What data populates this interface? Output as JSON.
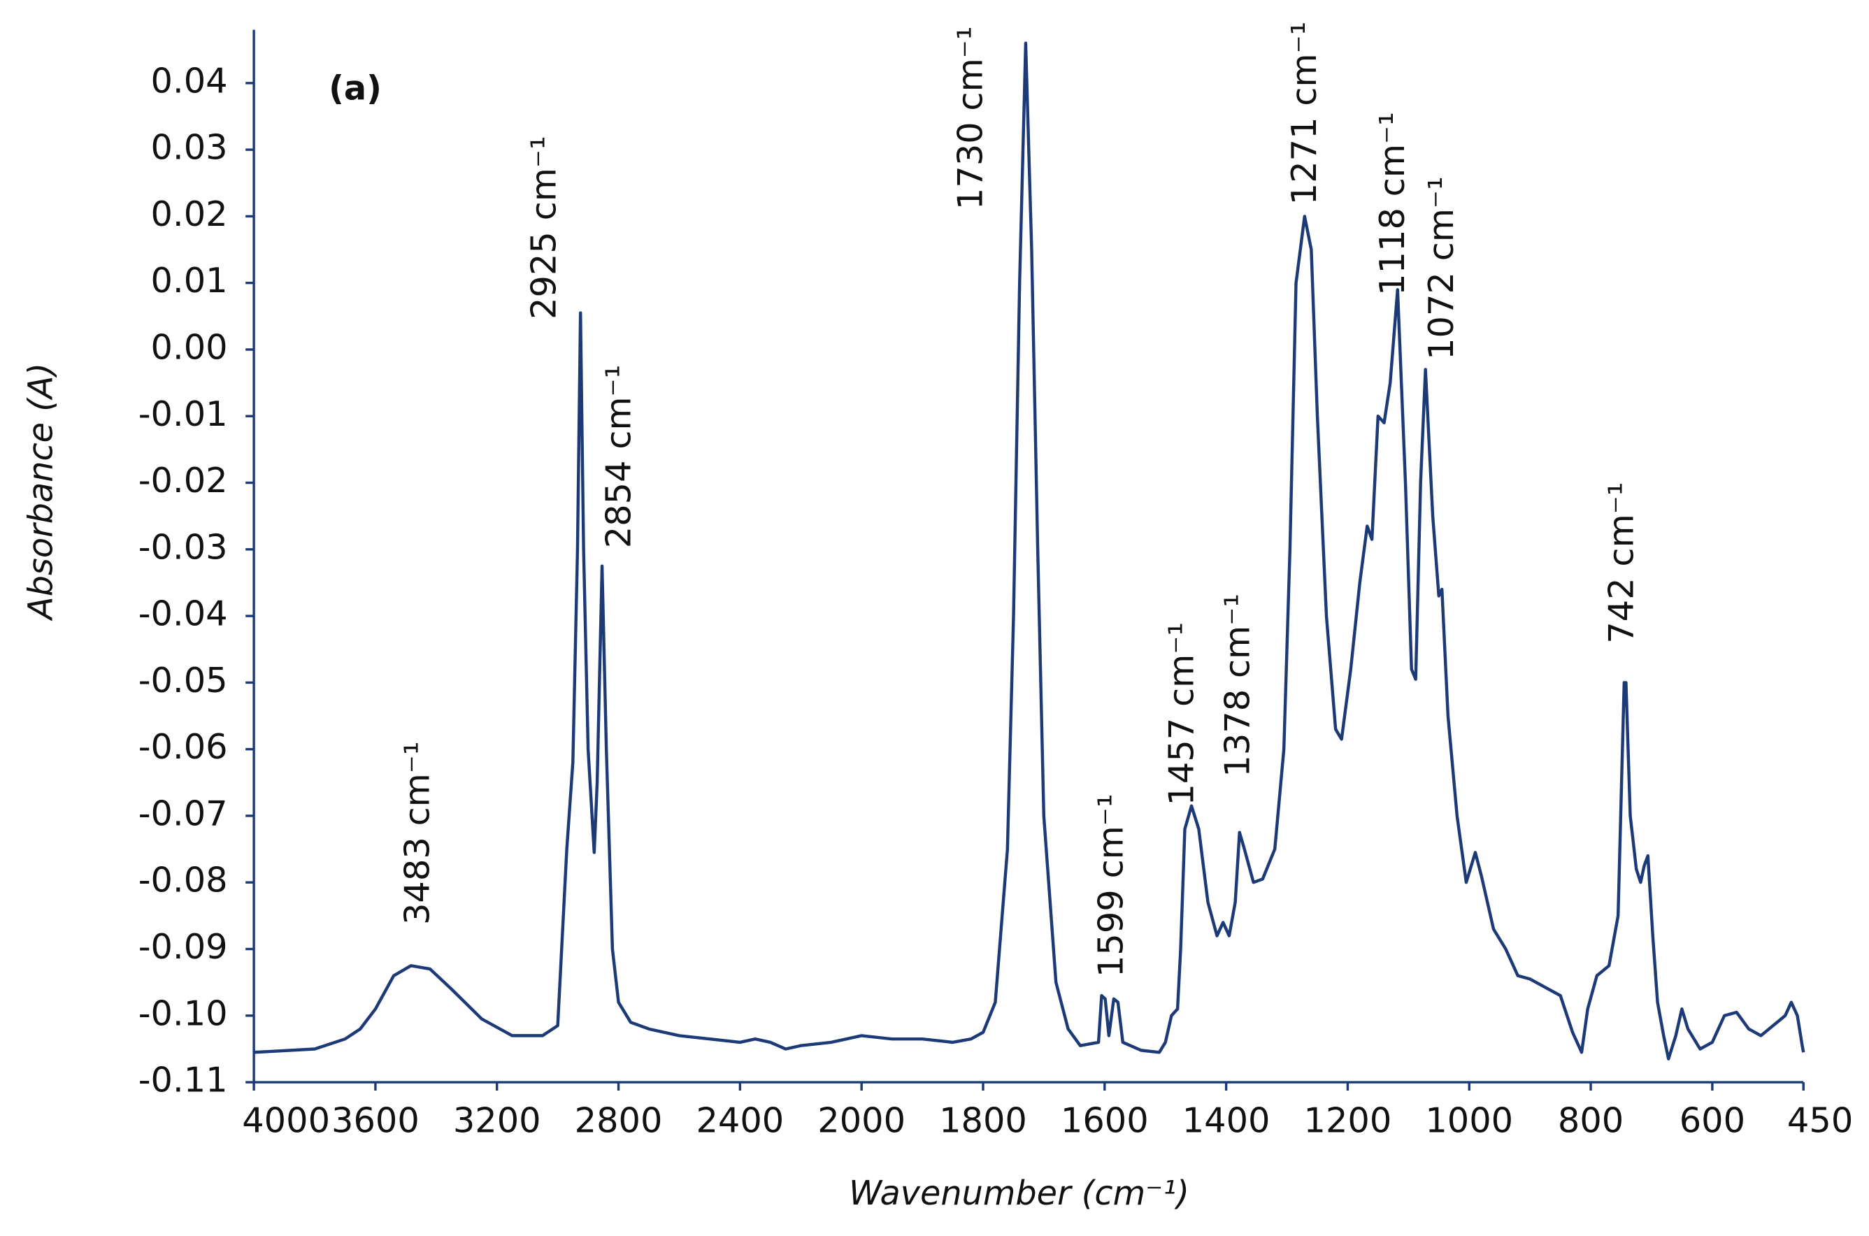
{
  "chart_data": {
    "type": "line",
    "panel_label": "(a)",
    "x_label": "Wavenumber (cm⁻¹)",
    "y_label": "Absorbance (A)",
    "xlim": [
      4000,
      450
    ],
    "xticks": [
      4000,
      3600,
      3200,
      2800,
      2400,
      2000,
      1800,
      1600,
      1400,
      1200,
      1000,
      800,
      600,
      450
    ],
    "ylim": [
      -0.11,
      0.048
    ],
    "yticks": [
      0.04,
      0.03,
      0.02,
      0.01,
      {
        "value": 0,
        "label": "0.00"
      },
      -0.01,
      -0.02,
      -0.03,
      -0.04,
      -0.05,
      -0.06,
      -0.07,
      -0.08,
      -0.09,
      {
        "value": -0.1,
        "label": "-0.10"
      },
      -0.11
    ],
    "grid": false,
    "color": "#1c3a78",
    "x": [
      4000,
      3800,
      3700,
      3650,
      3600,
      3540,
      3483,
      3420,
      3350,
      3250,
      3150,
      3050,
      3000,
      2970,
      2950,
      2935,
      2925,
      2915,
      2900,
      2880,
      2870,
      2854,
      2840,
      2820,
      2800,
      2760,
      2700,
      2600,
      2500,
      2400,
      2350,
      2300,
      2250,
      2200,
      2100,
      2000,
      1950,
      1900,
      1850,
      1820,
      1800,
      1780,
      1760,
      1750,
      1740,
      1730,
      1720,
      1710,
      1700,
      1680,
      1660,
      1640,
      1610,
      1605,
      1599,
      1593,
      1585,
      1578,
      1570,
      1540,
      1510,
      1500,
      1490,
      1480,
      1475,
      1468,
      1457,
      1445,
      1430,
      1415,
      1405,
      1395,
      1385,
      1378,
      1370,
      1355,
      1340,
      1320,
      1305,
      1295,
      1285,
      1271,
      1260,
      1250,
      1235,
      1220,
      1210,
      1195,
      1180,
      1168,
      1160,
      1150,
      1140,
      1130,
      1118,
      1105,
      1095,
      1088,
      1080,
      1072,
      1060,
      1050,
      1045,
      1035,
      1020,
      1005,
      990,
      980,
      960,
      940,
      920,
      900,
      870,
      850,
      830,
      815,
      805,
      790,
      770,
      755,
      745,
      742,
      735,
      725,
      718,
      712,
      706,
      698,
      690,
      680,
      672,
      660,
      650,
      640,
      620,
      600,
      580,
      560,
      540,
      520,
      500,
      480,
      470,
      460,
      452,
      450
    ],
    "values": [
      -0.1055,
      -0.105,
      -0.1035,
      -0.102,
      -0.099,
      -0.094,
      -0.0925,
      -0.093,
      -0.096,
      -0.1005,
      -0.103,
      -0.103,
      -0.1015,
      -0.075,
      -0.062,
      -0.03,
      0.0055,
      -0.03,
      -0.06,
      -0.0755,
      -0.065,
      -0.0325,
      -0.06,
      -0.09,
      -0.098,
      -0.101,
      -0.102,
      -0.103,
      -0.1035,
      -0.104,
      -0.1035,
      -0.104,
      -0.105,
      -0.1045,
      -0.104,
      -0.103,
      -0.1035,
      -0.1035,
      -0.104,
      -0.1035,
      -0.1025,
      -0.098,
      -0.075,
      -0.04,
      0.01,
      0.046,
      0.015,
      -0.03,
      -0.07,
      -0.095,
      -0.102,
      -0.1045,
      -0.104,
      -0.097,
      -0.0975,
      -0.103,
      -0.0975,
      -0.098,
      -0.104,
      -0.1052,
      -0.1055,
      -0.104,
      -0.1,
      -0.099,
      -0.09,
      -0.072,
      -0.0685,
      -0.072,
      -0.083,
      -0.088,
      -0.086,
      -0.088,
      -0.083,
      -0.0725,
      -0.075,
      -0.08,
      -0.0795,
      -0.075,
      -0.06,
      -0.03,
      0.01,
      0.02,
      0.015,
      -0.01,
      -0.04,
      -0.057,
      -0.0585,
      -0.048,
      -0.035,
      -0.0265,
      -0.0285,
      -0.01,
      -0.011,
      -0.005,
      0.009,
      -0.02,
      -0.048,
      -0.0495,
      -0.02,
      -0.003,
      -0.025,
      -0.037,
      -0.036,
      -0.055,
      -0.07,
      -0.08,
      -0.0755,
      -0.079,
      -0.087,
      -0.09,
      -0.094,
      -0.0945,
      -0.096,
      -0.097,
      -0.1025,
      -0.1055,
      -0.099,
      -0.094,
      -0.0925,
      -0.085,
      -0.05,
      -0.05,
      -0.07,
      -0.078,
      -0.08,
      -0.0775,
      -0.076,
      -0.088,
      -0.098,
      -0.103,
      -0.1065,
      -0.103,
      -0.099,
      -0.102,
      -0.105,
      -0.104,
      -0.1,
      -0.0995,
      -0.102,
      -0.103,
      -0.1015,
      -0.1,
      -0.098,
      -0.1,
      -0.1045,
      -0.1055
    ],
    "annotations": [
      "3483 cm⁻¹",
      "2925 cm⁻¹",
      "2854 cm⁻¹",
      "1730 cm⁻¹",
      "1599 cm⁻¹",
      "1457 cm⁻¹",
      "1378 cm⁻¹",
      "1271 cm⁻¹",
      "1118 cm⁻¹",
      "1072 cm⁻¹",
      "742 cm⁻¹"
    ]
  }
}
